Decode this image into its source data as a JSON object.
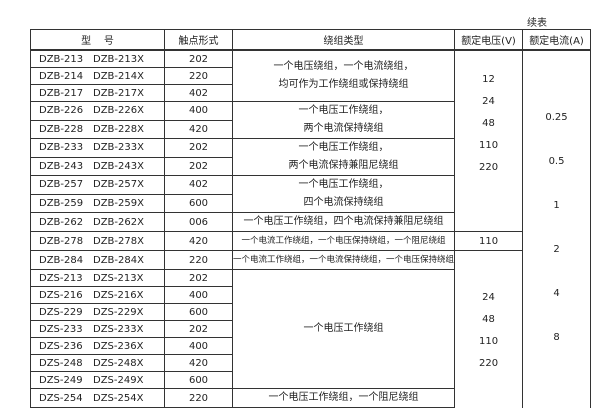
{
  "continued_label": "续表",
  "headers": {
    "model": "型    号",
    "contact": "触点形式",
    "winding": "绕组类型",
    "voltage": "额定电压(V)",
    "current": "额定电流(A)"
  },
  "rows": [
    {
      "a": "DZB-213",
      "b": "DZB-213X",
      "c": "202"
    },
    {
      "a": "DZB-214",
      "b": "DZB-214X",
      "c": "220"
    },
    {
      "a": "DZB-217",
      "b": "DZB-217X",
      "c": "402"
    },
    {
      "a": "DZB-226",
      "b": "DZB-226X",
      "c": "400"
    },
    {
      "a": "DZB-228",
      "b": "DZB-228X",
      "c": "420"
    },
    {
      "a": "DZB-233",
      "b": "DZB-233X",
      "c": "202"
    },
    {
      "a": "DZB-243",
      "b": "DZB-243X",
      "c": "202"
    },
    {
      "a": "DZB-257",
      "b": "DZB-257X",
      "c": "402"
    },
    {
      "a": "DZB-259",
      "b": "DZB-259X",
      "c": "600"
    },
    {
      "a": "DZB-262",
      "b": "DZB-262X",
      "c": "006"
    },
    {
      "a": "DZB-278",
      "b": "DZB-278X",
      "c": "420"
    },
    {
      "a": "DZB-284",
      "b": "DZB-284X",
      "c": "220"
    },
    {
      "a": "DZS-213",
      "b": "DZS-213X",
      "c": "202"
    },
    {
      "a": "DZS-216",
      "b": "DZS-216X",
      "c": "400"
    },
    {
      "a": "DZS-229",
      "b": "DZS-229X",
      "c": "600"
    },
    {
      "a": "DZS-233",
      "b": "DZS-233X",
      "c": "202"
    },
    {
      "a": "DZS-236",
      "b": "DZS-236X",
      "c": "400"
    },
    {
      "a": "DZS-248",
      "b": "DZS-248X",
      "c": "420"
    },
    {
      "a": "DZS-249",
      "b": "DZS-249X",
      "c": "600"
    },
    {
      "a": "DZS-254",
      "b": "DZS-254X",
      "c": "220"
    }
  ],
  "windings": [
    [
      "一个电压绕组，一个电流绕组，",
      "均可作为工作绕组或保持绕组"
    ],
    [
      "一个电压工作绕组，",
      "两个电流保持绕组"
    ],
    [
      "一个电压工作绕组，",
      "两个电流保持兼阻尼绕组"
    ],
    [
      "一个电压工作绕组，",
      "四个电流保持绕组"
    ],
    [
      "一个电压工作绕组，四个电流保持兼阻尼绕组"
    ],
    [
      "一个电流工作绕组，一个电压保持绕组，一个阻尼绕组"
    ],
    [
      "一个电流工作绕组，一个电流保持绕组，一个电压保持绕组"
    ],
    [
      "一个电压工作绕组"
    ],
    [
      "一个电压工作绕组，一个阻尼绕组"
    ]
  ],
  "voltages": {
    "group1": [
      "12",
      "24",
      "48",
      "110",
      "220"
    ],
    "group2": [
      "110"
    ],
    "group3": [
      "24",
      "48",
      "110",
      "220"
    ]
  },
  "currents": [
    "0.25",
    "0.5",
    "1",
    "2",
    "4",
    "8"
  ]
}
